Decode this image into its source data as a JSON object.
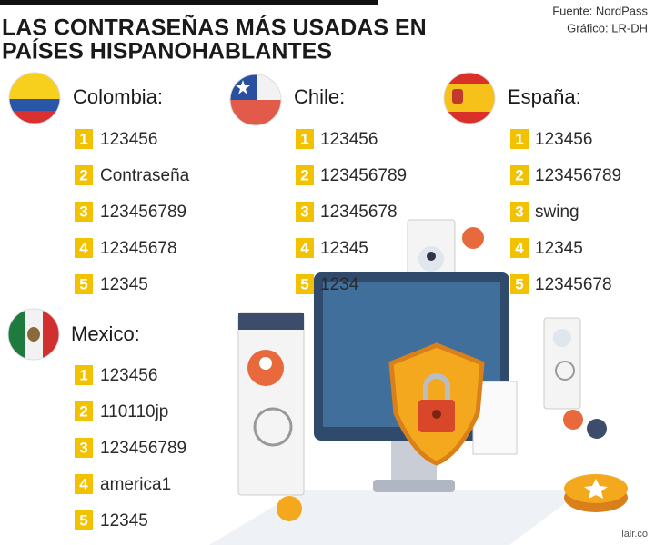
{
  "header": {
    "title_lines": [
      "LAS CONTRASEÑAS MÁS USADAS EN",
      "PAÍSES HISPANOHABLANTES"
    ],
    "source": "Fuente: NordPass",
    "credit": "Gráfico: LR-DH"
  },
  "countries": [
    {
      "name": "Colombia:",
      "items": [
        {
          "rank": 1,
          "password": "123456"
        },
        {
          "rank": 2,
          "password": "Contraseña"
        },
        {
          "rank": 3,
          "password": "123456789"
        },
        {
          "rank": 4,
          "password": "12345678"
        },
        {
          "rank": 5,
          "password": "12345"
        }
      ]
    },
    {
      "name": "Chile:",
      "items": [
        {
          "rank": 1,
          "password": "123456"
        },
        {
          "rank": 2,
          "password": "123456789"
        },
        {
          "rank": 3,
          "password": "12345678"
        },
        {
          "rank": 4,
          "password": "12345"
        },
        {
          "rank": 5,
          "password": "1234"
        }
      ]
    },
    {
      "name": "España:",
      "items": [
        {
          "rank": 1,
          "password": "123456"
        },
        {
          "rank": 2,
          "password": "123456789"
        },
        {
          "rank": 3,
          "password": "swing"
        },
        {
          "rank": 4,
          "password": "12345"
        },
        {
          "rank": 5,
          "password": "12345678"
        }
      ]
    },
    {
      "name": "Mexico:",
      "items": [
        {
          "rank": 1,
          "password": "123456"
        },
        {
          "rank": 2,
          "password": "110110jp"
        },
        {
          "rank": 3,
          "password": "123456789"
        },
        {
          "rank": 4,
          "password": "america1"
        },
        {
          "rank": 5,
          "password": "12345"
        }
      ]
    }
  ],
  "watermark": "lalr.co"
}
